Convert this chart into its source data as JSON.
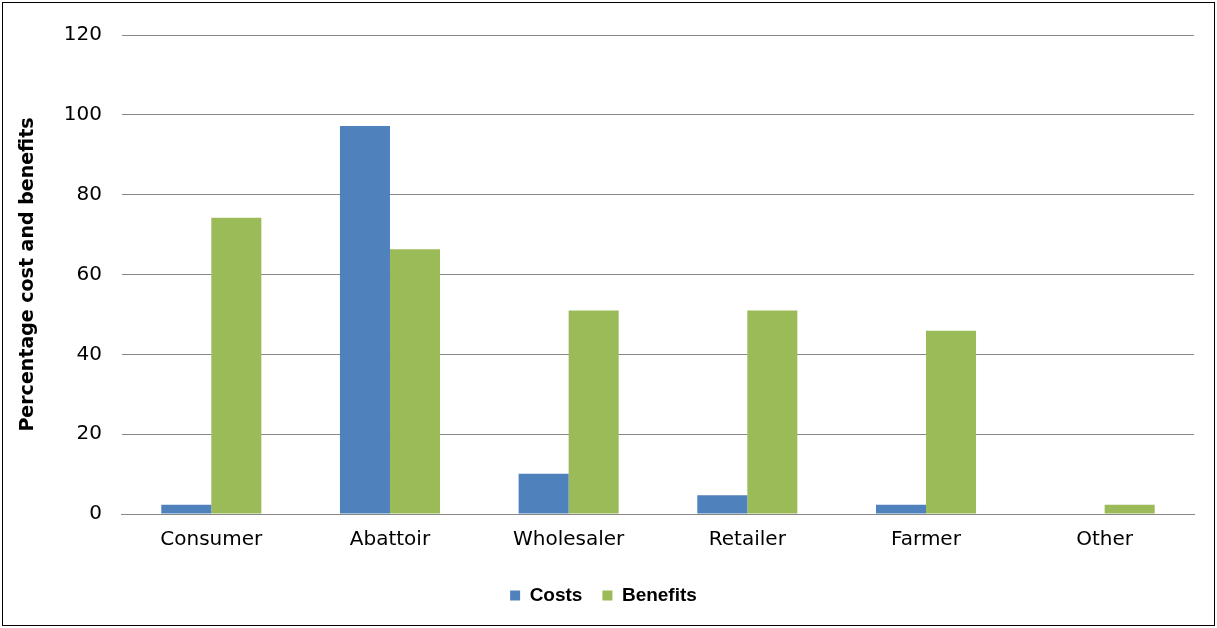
{
  "chart_data": {
    "type": "bar",
    "ylabel": "Percentage cost and benefits",
    "categories": [
      "Consumer",
      "Abattoir",
      "Wholesaler",
      "Retailer",
      "Farmer",
      "Other"
    ],
    "series": [
      {
        "name": "Costs",
        "color": "#4f81bd",
        "values": [
          2.3,
          97.2,
          10.1,
          4.7,
          2.3,
          0
        ]
      },
      {
        "name": "Benefits",
        "color": "#9bbb59",
        "values": [
          74.2,
          66.3,
          51.0,
          51.0,
          45.9,
          2.3
        ]
      }
    ],
    "ylim": [
      0,
      120
    ],
    "yticks": [
      0,
      20,
      40,
      60,
      80,
      100,
      120
    ],
    "grid": "y",
    "legend": "bottom"
  }
}
